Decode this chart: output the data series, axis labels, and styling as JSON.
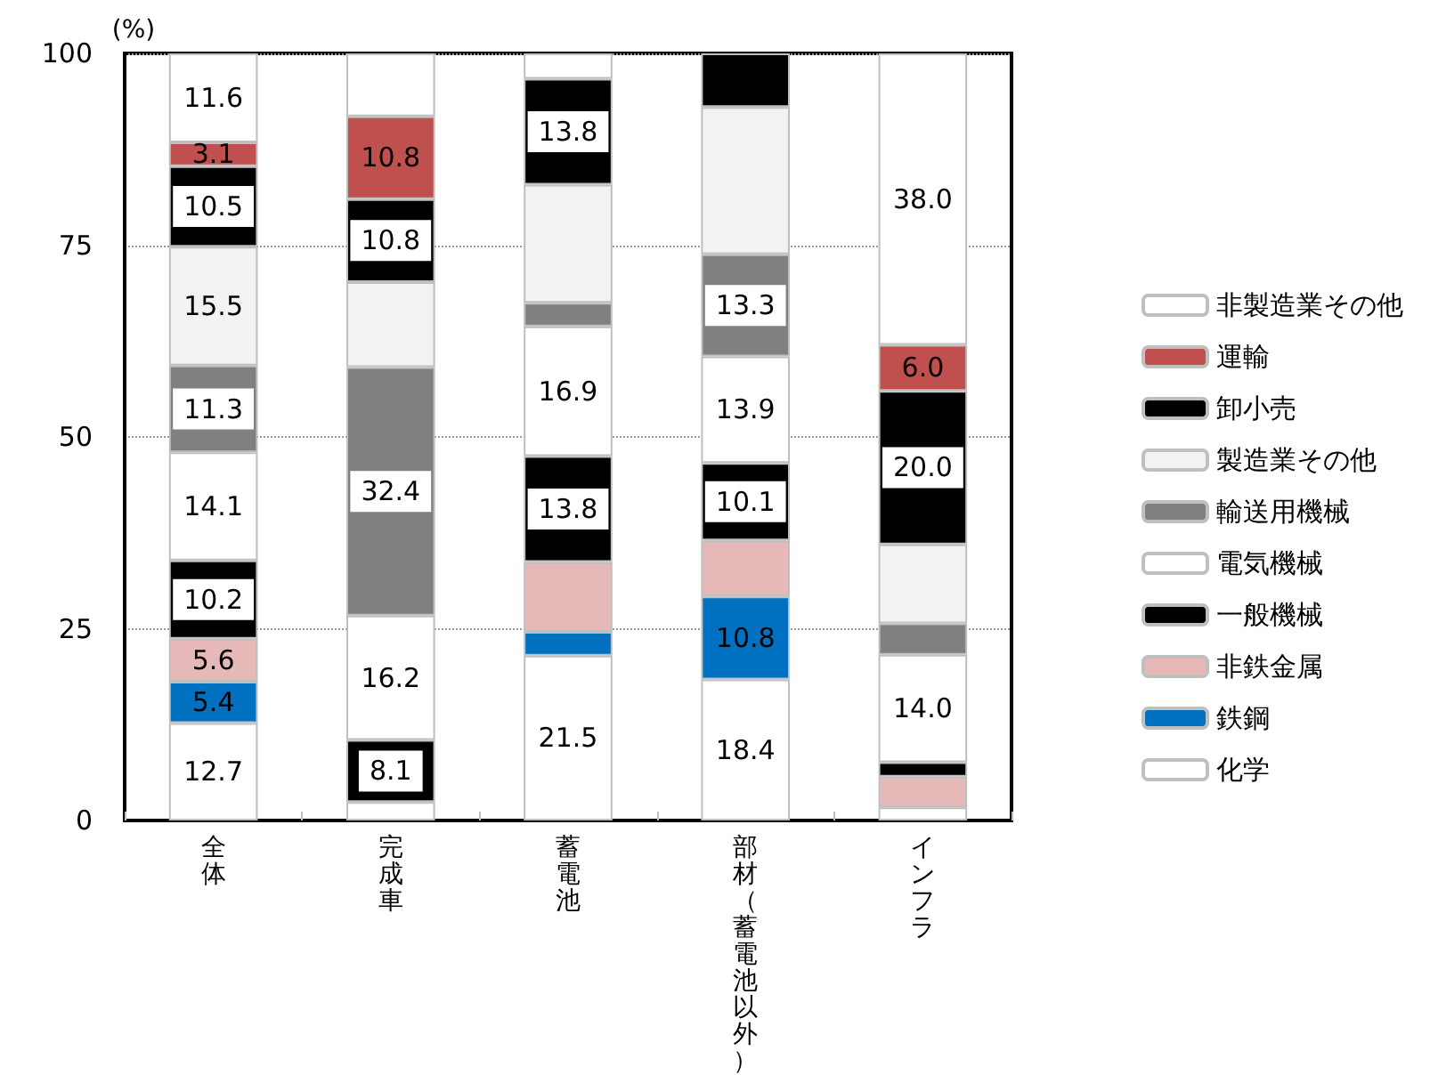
{
  "chart_data": {
    "type": "bar",
    "stacked": true,
    "categories": [
      "全体",
      "完成車",
      "蓄電池",
      "部材（蓄電池以外）",
      "インフラ"
    ],
    "ylabel": "(%)",
    "ylim": [
      0,
      100
    ],
    "yticks": [
      0,
      25,
      50,
      75,
      100
    ],
    "grid": "y",
    "legend": "right",
    "series": [
      {
        "name": "化学",
        "color": "#ffffff",
        "values": [
          12.7,
          2.4,
          21.5,
          18.4,
          1.7
        ],
        "value_labels": [
          "12.7",
          null,
          "21.5",
          "18.4",
          null
        ]
      },
      {
        "name": "鉄鋼",
        "color": "#0070c0",
        "values": [
          5.4,
          0,
          3.1,
          10.8,
          0
        ],
        "value_labels": [
          "5.4",
          null,
          null,
          "10.8",
          null
        ]
      },
      {
        "name": "非鉄金属",
        "color": "#e6b9b8",
        "values": [
          5.6,
          0,
          9.1,
          7.3,
          4.0
        ],
        "value_labels": [
          "5.6",
          null,
          null,
          null,
          null
        ]
      },
      {
        "name": "一般機械",
        "color": "#000000",
        "values": [
          10.2,
          8.1,
          13.8,
          10.1,
          1.9
        ],
        "value_labels": [
          "10.2",
          "8.1",
          "13.8",
          "10.1",
          null
        ]
      },
      {
        "name": "電気機械",
        "color": "#ffffff",
        "values": [
          14.1,
          16.2,
          16.9,
          13.9,
          14.0
        ],
        "value_labels": [
          "14.1",
          "16.2",
          "16.9",
          "13.9",
          "14.0"
        ]
      },
      {
        "name": "輸送用機械",
        "color": "#808080",
        "values": [
          11.3,
          32.4,
          3.1,
          13.3,
          4.1
        ],
        "value_labels": [
          "11.3",
          "32.4",
          null,
          "13.3",
          null
        ]
      },
      {
        "name": "製造業その他",
        "color": "#f2f2f2",
        "values": [
          15.5,
          11.1,
          15.4,
          19.2,
          10.3
        ],
        "value_labels": [
          "15.5",
          null,
          null,
          null,
          null
        ]
      },
      {
        "name": "卸小売",
        "color": "#000000",
        "values": [
          10.5,
          10.8,
          13.8,
          7.0,
          20.0
        ],
        "value_labels": [
          "10.5",
          "10.8",
          "13.8",
          null,
          "20.0"
        ]
      },
      {
        "name": "運輸",
        "color": "#c0504d",
        "values": [
          3.1,
          10.8,
          0,
          0,
          6.0
        ],
        "value_labels": [
          "3.1",
          "10.8",
          null,
          null,
          "6.0"
        ]
      },
      {
        "name": "非製造業その他",
        "color": "#ffffff",
        "values": [
          11.6,
          8.2,
          3.3,
          0,
          38.0
        ],
        "value_labels": [
          "11.6",
          null,
          null,
          null,
          "38.0"
        ]
      }
    ]
  }
}
